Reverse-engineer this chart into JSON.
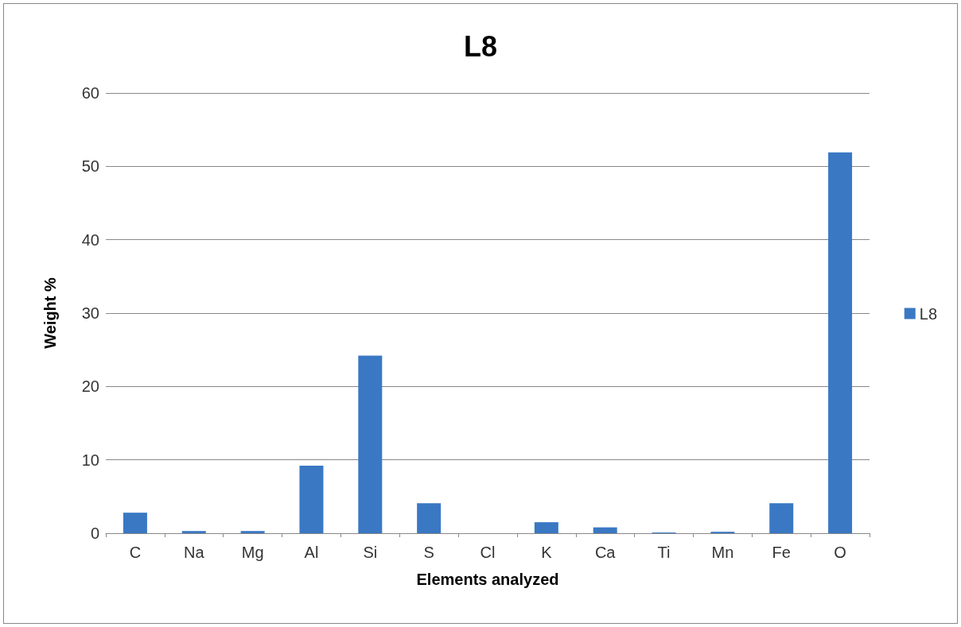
{
  "chart_data": {
    "type": "bar",
    "title": "L8",
    "xlabel": "Elements analyzed",
    "ylabel": "Weight %",
    "categories": [
      "C",
      "Na",
      "Mg",
      "Al",
      "Si",
      "S",
      "Cl",
      "K",
      "Ca",
      "Ti",
      "Mn",
      "Fe",
      "O"
    ],
    "series": [
      {
        "name": "L8",
        "color": "#3a78c4",
        "values": [
          2.8,
          0.3,
          0.3,
          9.2,
          24.2,
          4.1,
          0,
          1.5,
          0.8,
          0.1,
          0.2,
          4.1,
          51.9
        ]
      }
    ],
    "ylim": [
      0,
      60
    ],
    "yticks": [
      0,
      10,
      20,
      30,
      40,
      50,
      60
    ],
    "grid": "y",
    "legend": "right"
  }
}
